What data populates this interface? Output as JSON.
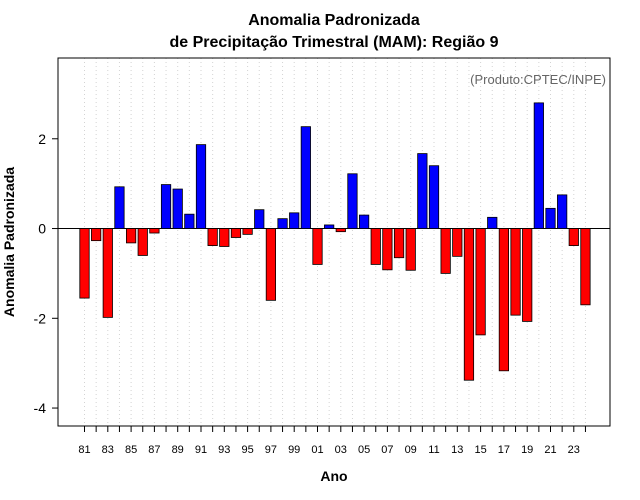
{
  "chart_data": {
    "type": "bar",
    "title_line1": "Anomalia Padronizada",
    "title_line2": "de Precipitação Trimestral (MAM): Região 9",
    "xlabel": "Ano",
    "ylabel": "Anomalia Padronizada",
    "credit": "(Produto:CPTEC/INPE)",
    "ylim": [
      -4.4,
      3.8
    ],
    "yticks": [
      -4,
      -2,
      0,
      2
    ],
    "ytick_labels": [
      "-4",
      "-2",
      "0",
      "2"
    ],
    "grid": "vertical dotted",
    "colors": {
      "positive": "#0000ff",
      "negative": "#ff0000"
    },
    "categories": [
      "81",
      "82",
      "83",
      "84",
      "85",
      "86",
      "87",
      "88",
      "89",
      "90",
      "91",
      "92",
      "93",
      "94",
      "95",
      "96",
      "97",
      "98",
      "99",
      "00",
      "01",
      "02",
      "03",
      "04",
      "05",
      "06",
      "07",
      "08",
      "09",
      "10",
      "11",
      "12",
      "13",
      "14",
      "15",
      "16",
      "17",
      "18",
      "19",
      "20",
      "21",
      "22",
      "23",
      "24"
    ],
    "xtick_labels": [
      "81",
      "83",
      "85",
      "87",
      "89",
      "91",
      "93",
      "95",
      "97",
      "99",
      "01",
      "03",
      "05",
      "07",
      "09",
      "11",
      "13",
      "15",
      "17",
      "19",
      "21",
      "23"
    ],
    "values": [
      -1.55,
      -0.27,
      -1.98,
      0.93,
      -0.32,
      -0.6,
      -0.1,
      0.98,
      0.88,
      0.32,
      1.87,
      -0.38,
      -0.4,
      -0.2,
      -0.13,
      0.42,
      -1.6,
      0.22,
      0.35,
      2.27,
      -0.8,
      0.08,
      -0.07,
      1.22,
      0.3,
      -0.8,
      -0.92,
      -0.65,
      -0.93,
      1.67,
      1.4,
      -1.0,
      -0.62,
      -3.38,
      -2.37,
      0.25,
      -3.17,
      -1.93,
      -2.07,
      2.8,
      0.45,
      0.75,
      -0.38,
      -1.7
    ]
  }
}
